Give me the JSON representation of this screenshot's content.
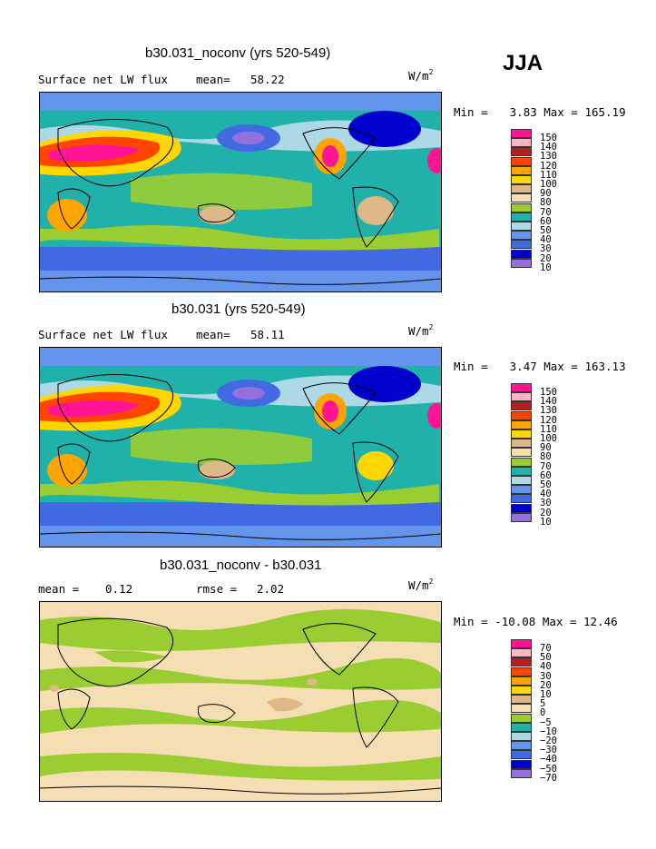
{
  "season": "JJA",
  "unit_base": "W/m",
  "unit_exp": "2",
  "panels": [
    {
      "title": "b30.031_noconv (yrs 520-549)",
      "left_label": "Surface net LW flux",
      "mid_label": "mean=",
      "mid_value": "58.22",
      "min_label": "Min =",
      "min_value": "3.83",
      "max_label": "Max =",
      "max_value": "165.19"
    },
    {
      "title": "b30.031 (yrs 520-549)",
      "left_label": "Surface net LW flux",
      "mid_label": "mean=",
      "mid_value": "58.11",
      "min_label": "Min =",
      "min_value": "3.47",
      "max_label": "Max =",
      "max_value": "163.13"
    },
    {
      "title": "b30.031_noconv - b30.031",
      "left_label": "mean =",
      "left_value": "0.12",
      "mid_label": "rmse =",
      "mid_value": "2.02",
      "min_label": "Min =",
      "min_value": "-10.08",
      "max_label": "Max =",
      "max_value": "12.46"
    }
  ],
  "legend_colors": [
    "#9370db",
    "#0000cd",
    "#4169e1",
    "#6495ed",
    "#add8e6",
    "#20b2aa",
    "#9acd32",
    "#f5deb3",
    "#deb887",
    "#ffd700",
    "#ffa500",
    "#ff4500",
    "#b22222",
    "#ffb6c1",
    "#ff1493"
  ],
  "legend_abs_labels": [
    "150",
    "140",
    "130",
    "120",
    "110",
    "100",
    "90",
    "80",
    "70",
    "60",
    "50",
    "40",
    "30",
    "20",
    "10"
  ],
  "legend_diff_labels": [
    "70",
    "50",
    "40",
    "30",
    "20",
    "10",
    "5",
    "0",
    "−5",
    "−10",
    "−20",
    "−30",
    "−40",
    "−50",
    "−70"
  ]
}
